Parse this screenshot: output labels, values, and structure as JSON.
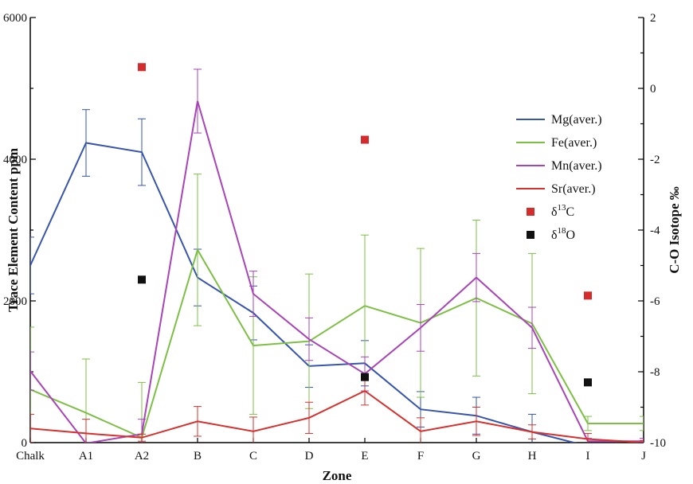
{
  "chart_data": {
    "type": "line",
    "xlabel": "Zone",
    "ylabel": "Trace Element Content ppm",
    "y2label": "C-O Isotope ‰",
    "categories": [
      "Chalk",
      "A1",
      "A2",
      "B",
      "C",
      "D",
      "E",
      "F",
      "G",
      "H",
      "I",
      "J"
    ],
    "ylim": [
      0,
      6000
    ],
    "yticks": [
      "0",
      "2000",
      "4000",
      "6000"
    ],
    "y2lim": [
      -10,
      2
    ],
    "y2ticks": [
      "-10",
      "-8",
      "-6",
      "-4",
      "-2",
      "0",
      "2"
    ],
    "legend_position": "right",
    "grid": false,
    "series": [
      {
        "name": "Mg(aver.)",
        "color": "#3654b0",
        "axis": "left",
        "values": [
          2500,
          4230,
          4100,
          2330,
          1830,
          1080,
          1120,
          470,
          380,
          150,
          -50,
          null
        ],
        "error": [
          400,
          470,
          470,
          400,
          380,
          300,
          320,
          250,
          260,
          250,
          null,
          null
        ]
      },
      {
        "name": "Fe(aver.)",
        "color": "#7cc043",
        "axis": "left",
        "values": [
          750,
          420,
          70,
          2720,
          1370,
          1430,
          1930,
          1690,
          2040,
          1680,
          270,
          270
        ],
        "error": [
          880,
          760,
          780,
          1070,
          970,
          950,
          1000,
          1050,
          1100,
          990,
          100,
          100
        ]
      },
      {
        "name": "Mn(aver.)",
        "color": "#a943b8",
        "axis": "left",
        "values": [
          1010,
          -10,
          120,
          4820,
          2100,
          1460,
          970,
          1620,
          2330,
          1620,
          20,
          20
        ],
        "error": [
          270,
          null,
          210,
          450,
          320,
          300,
          240,
          330,
          340,
          290,
          40,
          40
        ]
      },
      {
        "name": "Sr(aver.)",
        "color": "#d8302c",
        "axis": "left",
        "values": [
          200,
          130,
          70,
          300,
          160,
          350,
          730,
          160,
          300,
          150,
          50,
          0
        ],
        "error": [
          200,
          200,
          50,
          210,
          200,
          220,
          200,
          190,
          200,
          100,
          80,
          30
        ]
      }
    ],
    "points": [
      {
        "name": "δ13C",
        "label_base": "δ",
        "label_sup": "13",
        "label_end": "C",
        "color": "#d42c2c",
        "axis": "right",
        "data": [
          [
            "A2",
            0.6
          ],
          [
            "E",
            -1.45
          ],
          [
            "I",
            -5.85
          ]
        ]
      },
      {
        "name": "δ18O",
        "label_base": "δ",
        "label_sup": "18",
        "label_end": "O",
        "color": "#111111",
        "axis": "right",
        "data": [
          [
            "A2",
            -5.4
          ],
          [
            "E",
            -8.15
          ],
          [
            "I",
            -8.3
          ]
        ]
      }
    ]
  }
}
